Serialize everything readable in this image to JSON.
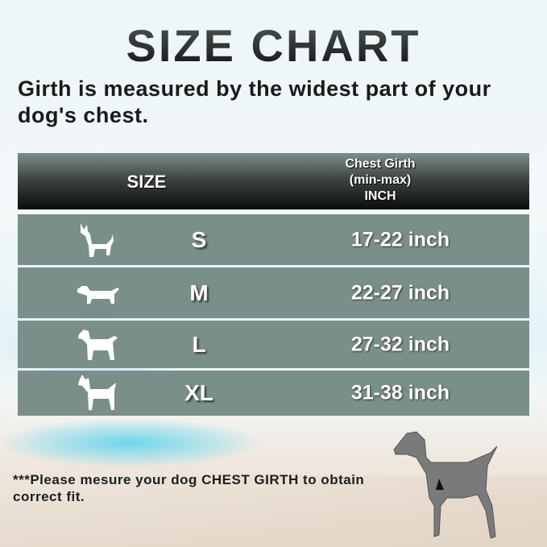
{
  "title": "SIZE CHART",
  "subtitle": "Girth is measured by the widest part of your dog's chest.",
  "table": {
    "headers": {
      "size": "SIZE",
      "girth_line1": "Chest Girth",
      "girth_line2": "(min-max)",
      "girth_line3": "INCH"
    },
    "rows": [
      {
        "icon": "small-dog-icon",
        "size": "S",
        "girth": "17-22 inch"
      },
      {
        "icon": "dachshund-icon",
        "size": "M",
        "girth": "22-27 inch"
      },
      {
        "icon": "medium-dog-icon",
        "size": "L",
        "girth": "27-32 inch"
      },
      {
        "icon": "large-dog-icon",
        "size": "XL",
        "girth": "31-38 inch"
      }
    ]
  },
  "note": "***Please mesure your dog CHEST GIRTH to obtain correct fit.",
  "colors": {
    "row": "#7b8f8a",
    "header_dark": "#0b0c0c",
    "text": "#1a1a1a"
  }
}
